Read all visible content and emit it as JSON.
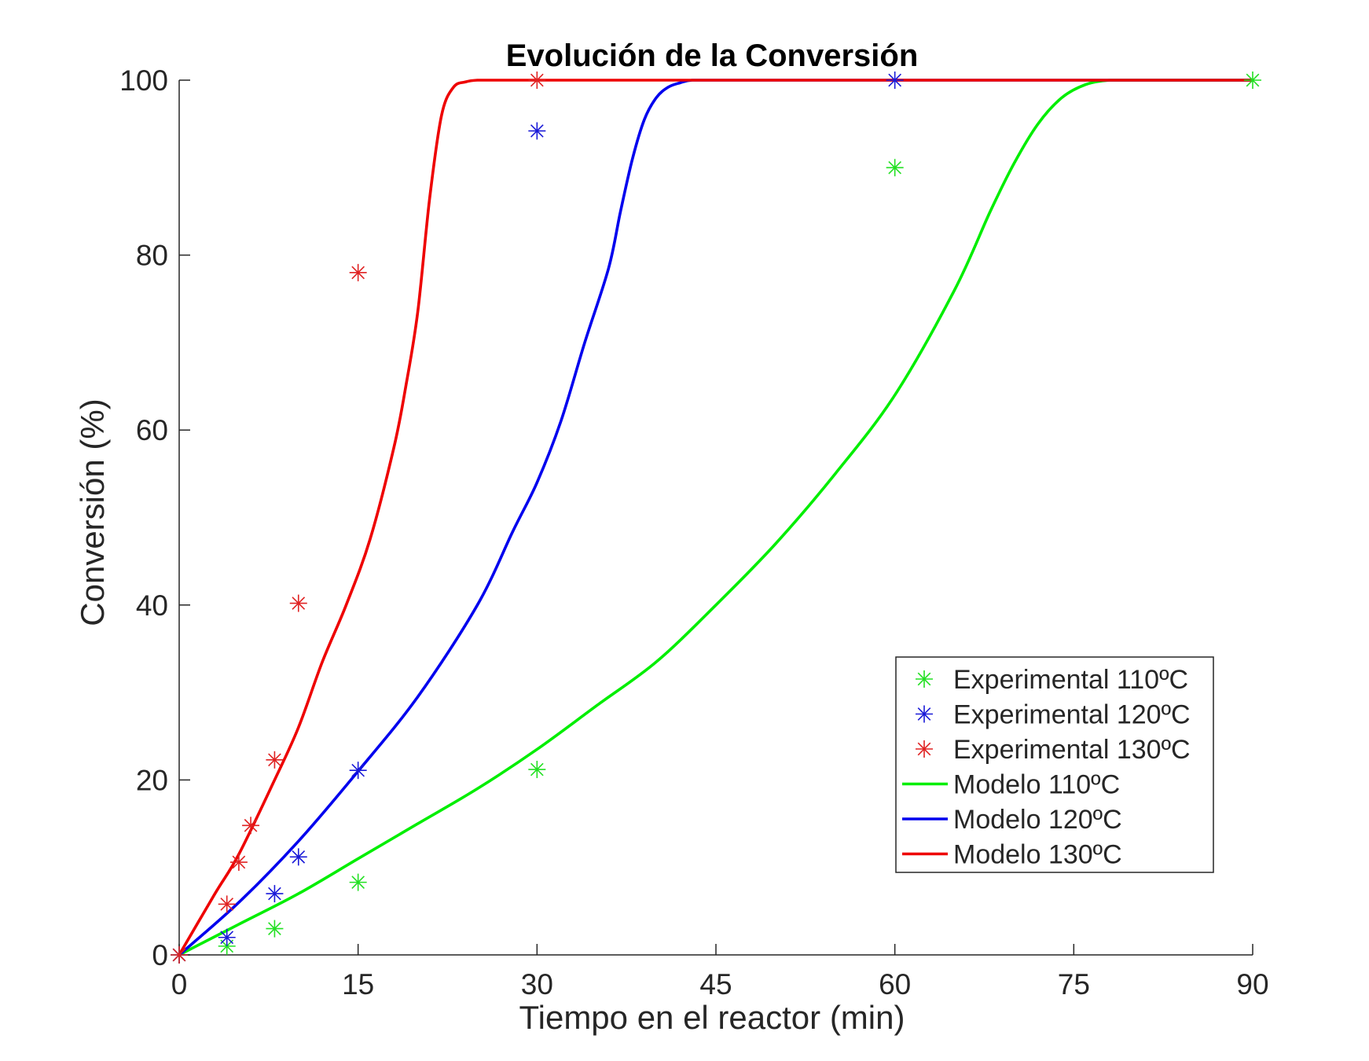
{
  "chart_data": {
    "type": "line",
    "title": "Evolución de la Conversión",
    "xlabel": "Tiempo en el reactor (min)",
    "ylabel": "Conversión (%)",
    "xlim": [
      0,
      90
    ],
    "ylim": [
      0,
      100
    ],
    "xticks": [
      0,
      15,
      30,
      45,
      60,
      75,
      90
    ],
    "yticks": [
      0,
      20,
      40,
      60,
      80,
      100
    ],
    "grid": false,
    "legend_position": "bottom-right",
    "series": [
      {
        "name": "Experimental 110ºC",
        "kind": "scatter",
        "marker": "asterisk",
        "color": "#22e022",
        "x": [
          0,
          4,
          8,
          15,
          30,
          60,
          90
        ],
        "y": [
          0,
          1,
          3,
          8.3,
          21.2,
          90,
          100
        ]
      },
      {
        "name": "Experimental 120ºC",
        "kind": "scatter",
        "marker": "asterisk",
        "color": "#1a1ad8",
        "x": [
          0,
          4,
          8,
          10,
          15,
          30,
          60
        ],
        "y": [
          0,
          2,
          7,
          11.2,
          21.1,
          94.2,
          100
        ]
      },
      {
        "name": "Experimental 130ºC",
        "kind": "scatter",
        "marker": "asterisk",
        "color": "#e02222",
        "x": [
          0,
          4,
          5,
          6,
          8,
          10,
          15,
          30
        ],
        "y": [
          0,
          5.8,
          10.6,
          14.8,
          22.3,
          40.2,
          78,
          100
        ]
      },
      {
        "name": "Modelo 110ºC",
        "kind": "line",
        "color": "#00ee00",
        "x": [
          0,
          5,
          10,
          15,
          20,
          25,
          30,
          35,
          40,
          45,
          50,
          55,
          60,
          65,
          68,
          70,
          72,
          74,
          76,
          78,
          80,
          85,
          90
        ],
        "y": [
          0,
          3.5,
          7,
          11,
          15,
          19,
          23.5,
          28.5,
          33.5,
          40,
          47,
          55,
          64,
          76,
          85,
          90.5,
          95,
          98,
          99.5,
          100,
          100,
          100,
          100
        ]
      },
      {
        "name": "Modelo 120ºC",
        "kind": "line",
        "color": "#0000ee",
        "x": [
          0,
          5,
          10,
          15,
          20,
          25,
          28,
          30,
          32,
          34,
          36,
          37,
          38,
          39,
          40,
          41,
          42,
          43,
          45,
          50,
          60,
          75,
          90
        ],
        "y": [
          0,
          6,
          13,
          21,
          29.5,
          40,
          48.5,
          54,
          61,
          70,
          78.5,
          85,
          91,
          95.5,
          98,
          99.2,
          99.7,
          100,
          100,
          100,
          100,
          100,
          100
        ]
      },
      {
        "name": "Modelo 130ºC",
        "kind": "line",
        "color": "#ee0000",
        "x": [
          0,
          3,
          5,
          8,
          10,
          12,
          14,
          16,
          18,
          19,
          20,
          21,
          22,
          23,
          24,
          25,
          27,
          30,
          45,
          60,
          75,
          90
        ],
        "y": [
          0,
          7,
          11.5,
          20,
          26,
          33.5,
          40,
          47.5,
          58,
          65,
          73.5,
          86.5,
          96,
          99.2,
          99.8,
          100,
          100,
          100,
          100,
          100,
          100,
          100
        ]
      }
    ]
  }
}
